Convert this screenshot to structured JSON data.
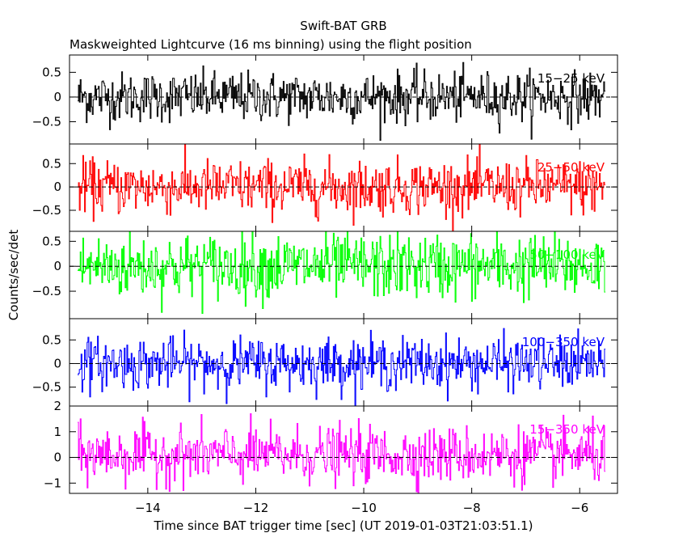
{
  "chart_data": {
    "type": "line",
    "title": "Swift-BAT GRB",
    "subtitle": "Maskweighted Lightcurve (16 ms binning) using the flight position",
    "xlabel": "Time since BAT trigger time [sec] (UT 2019-01-03T21:03:51.1)",
    "ylabel": "Counts/sec/det",
    "xlim": [
      -15.45,
      -5.3
    ],
    "x_ticks": [
      -14,
      -12,
      -10,
      -8,
      -6
    ],
    "x_tick_labels": [
      "−14",
      "−12",
      "−10",
      "−8",
      "−6"
    ],
    "series_x_range": [
      -15.3,
      -5.52
    ],
    "bin_width_sec": 0.016,
    "grid": false,
    "legend": "none",
    "panels": [
      {
        "name": "15-25 keV",
        "label": "15−25 keV",
        "color": "#000000",
        "ylim": [
          -0.95,
          0.85
        ],
        "y_ticks": [
          0.5,
          0,
          -0.5
        ],
        "y_tick_labels": [
          "0.5",
          "0",
          "−0.5"
        ],
        "noise_amplitude": 0.28,
        "mean": 0.0
      },
      {
        "name": "25-50 keV",
        "label": "25−50 keV",
        "color": "#ff0000",
        "ylim": [
          -0.95,
          0.92
        ],
        "y_ticks": [
          0.5,
          0,
          -0.5
        ],
        "y_tick_labels": [
          "0.5",
          "0",
          "−0.5"
        ],
        "noise_amplitude": 0.32,
        "mean": 0.0
      },
      {
        "name": "50-100 keV",
        "label": "50−100 keV",
        "color": "#00ff00",
        "ylim": [
          -1.05,
          0.7
        ],
        "y_ticks": [
          0.5,
          0,
          -0.5
        ],
        "y_tick_labels": [
          "0.5",
          "0",
          "−0.5"
        ],
        "noise_amplitude": 0.36,
        "mean": 0.0
      },
      {
        "name": "100-350 keV",
        "label": "100−350 keV",
        "color": "#0000ff",
        "ylim": [
          -0.9,
          0.95
        ],
        "y_ticks": [
          0.5,
          0,
          -0.5
        ],
        "y_tick_labels": [
          "0.5",
          "0",
          "−0.5"
        ],
        "noise_amplitude": 0.3,
        "mean": 0.0
      },
      {
        "name": "15-350 keV",
        "label": "15−350 keV",
        "color": "#ff00ff",
        "ylim": [
          -1.4,
          2.0
        ],
        "y_ticks": [
          2,
          1,
          0,
          -1
        ],
        "y_tick_labels": [
          "2",
          "1",
          "0",
          "−1"
        ],
        "noise_amplitude": 0.6,
        "mean": 0.1
      }
    ]
  }
}
